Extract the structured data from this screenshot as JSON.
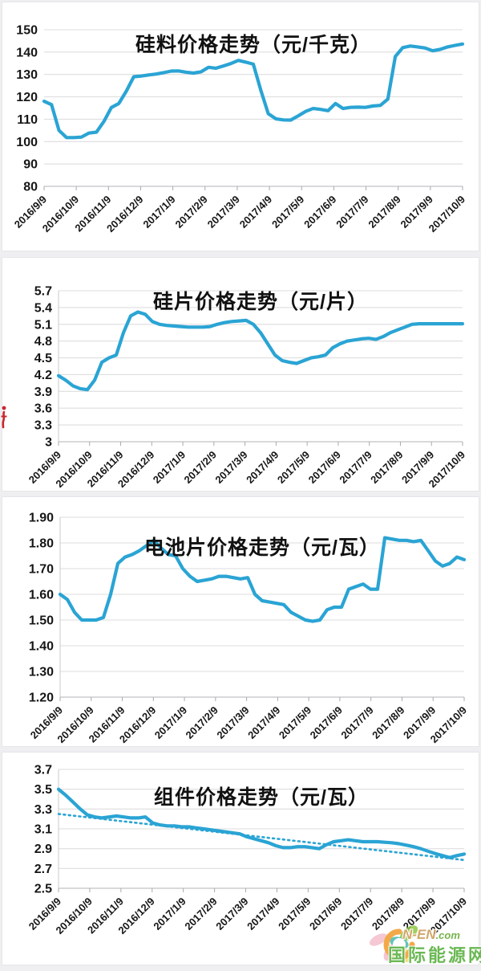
{
  "page": {
    "background": "#efeff1"
  },
  "chart_data": [
    {
      "type": "line",
      "title": "硅料价格走势（元/千克）",
      "categories": [
        "2016/9/9",
        "2016/10/9",
        "2016/11/9",
        "2016/12/9",
        "2017/1/9",
        "2017/2/9",
        "2017/3/9",
        "2017/4/9",
        "2017/5/9",
        "2017/6/9",
        "2017/7/9",
        "2017/8/9",
        "2017/9/9",
        "2017/10/9"
      ],
      "values": [
        118,
        116.5,
        105,
        101.8,
        101.8,
        102,
        103.8,
        104.2,
        109,
        115.2,
        117,
        122.5,
        129,
        129.3,
        129.8,
        130.2,
        130.8,
        131.5,
        131.6,
        131,
        130.6,
        131.2,
        133.2,
        132.8,
        133.8,
        134.9,
        136.3,
        135.5,
        134.6,
        123,
        112.5,
        110.2,
        109.7,
        109.6,
        111.5,
        113.5,
        114.8,
        114.4,
        113.8,
        117,
        114.8,
        115.3,
        115.4,
        115.3,
        115.9,
        116.2,
        119,
        138,
        142,
        142.7,
        142.3,
        141.8,
        140.6,
        141.2,
        142.3,
        143,
        143.6
      ],
      "ylim": [
        80,
        150
      ],
      "yticks": [
        "150",
        "140",
        "130",
        "120",
        "110",
        "100",
        "90",
        "80"
      ],
      "xlabel": "",
      "ylabel": "",
      "grid": true,
      "legend": "none",
      "line_color": "#2aa4d4"
    },
    {
      "type": "line",
      "title": "硅片价格走势（元/片）",
      "categories": [
        "2016/9/9",
        "2016/10/9",
        "2016/11/9",
        "2016/12/9",
        "2017/1/9",
        "2017/2/9",
        "2017/3/9",
        "2017/4/9",
        "2017/5/9",
        "2017/6/9",
        "2017/7/9",
        "2017/8/9",
        "2017/9/9",
        "2017/10/9"
      ],
      "values": [
        4.18,
        4.1,
        4.0,
        3.95,
        3.93,
        4.1,
        4.42,
        4.5,
        4.55,
        4.95,
        5.25,
        5.32,
        5.28,
        5.15,
        5.1,
        5.08,
        5.07,
        5.06,
        5.05,
        5.05,
        5.05,
        5.06,
        5.1,
        5.13,
        5.15,
        5.16,
        5.17,
        5.1,
        4.95,
        4.75,
        4.55,
        4.45,
        4.42,
        4.4,
        4.45,
        4.5,
        4.52,
        4.55,
        4.68,
        4.75,
        4.8,
        4.82,
        4.84,
        4.85,
        4.83,
        4.88,
        4.95,
        5.0,
        5.05,
        5.1,
        5.11,
        5.11,
        5.11,
        5.11,
        5.11,
        5.11,
        5.11
      ],
      "ylim": [
        3,
        5.7
      ],
      "yticks": [
        "5.7",
        "5.4",
        "5.1",
        "4.8",
        "4.5",
        "4.2",
        "3.9",
        "3.6",
        "3.3",
        "3"
      ],
      "xlabel": "",
      "ylabel": "",
      "grid": true,
      "legend": "none",
      "line_color": "#2aa4d4"
    },
    {
      "type": "line",
      "title": "电池片价格走势（元/瓦）",
      "categories": [
        "2016/9/9",
        "2016/10/9",
        "2016/11/9",
        "2016/12/9",
        "2017/1/9",
        "2017/2/9",
        "2017/3/9",
        "2017/4/9",
        "2017/5/9",
        "2017/6/9",
        "2017/7/9",
        "2017/8/9",
        "2017/9/9",
        "2017/10/9"
      ],
      "values": [
        1.6,
        1.58,
        1.53,
        1.5,
        1.5,
        1.5,
        1.51,
        1.6,
        1.72,
        1.745,
        1.755,
        1.77,
        1.79,
        1.81,
        1.78,
        1.755,
        1.75,
        1.7,
        1.67,
        1.65,
        1.655,
        1.66,
        1.67,
        1.67,
        1.665,
        1.66,
        1.665,
        1.6,
        1.575,
        1.57,
        1.565,
        1.56,
        1.53,
        1.515,
        1.5,
        1.495,
        1.5,
        1.54,
        1.55,
        1.55,
        1.62,
        1.63,
        1.64,
        1.62,
        1.62,
        1.82,
        1.815,
        1.81,
        1.81,
        1.805,
        1.81,
        1.77,
        1.73,
        1.71,
        1.72,
        1.745,
        1.735
      ],
      "ylim": [
        1.2,
        1.9
      ],
      "yticks": [
        "1.90",
        "1.80",
        "1.70",
        "1.60",
        "1.50",
        "1.40",
        "1.30",
        "1.20"
      ],
      "xlabel": "",
      "ylabel": "",
      "grid": true,
      "legend": "none",
      "line_color": "#2aa4d4"
    },
    {
      "type": "line",
      "title": "组件价格走势（元/瓦）",
      "categories": [
        "2016/9/9",
        "2016/10/9",
        "2016/11/9",
        "2016/12/9",
        "2017/1/9",
        "2017/2/9",
        "2017/3/9",
        "2017/4/9",
        "2017/5/9",
        "2017/6/9",
        "2017/7/9",
        "2017/8/9",
        "2017/9/9",
        "2017/10/9"
      ],
      "values": [
        3.5,
        3.44,
        3.37,
        3.3,
        3.24,
        3.22,
        3.21,
        3.22,
        3.23,
        3.22,
        3.21,
        3.21,
        3.22,
        3.16,
        3.14,
        3.13,
        3.13,
        3.12,
        3.12,
        3.11,
        3.1,
        3.09,
        3.08,
        3.07,
        3.06,
        3.05,
        3.02,
        3.0,
        2.98,
        2.96,
        2.93,
        2.91,
        2.91,
        2.92,
        2.92,
        2.91,
        2.9,
        2.94,
        2.97,
        2.98,
        2.99,
        2.98,
        2.97,
        2.97,
        2.97,
        2.965,
        2.96,
        2.95,
        2.935,
        2.92,
        2.9,
        2.875,
        2.85,
        2.83,
        2.81,
        2.83,
        2.845
      ],
      "ylim": [
        2.5,
        3.7
      ],
      "yticks": [
        "3.7",
        "3.5",
        "3.3",
        "3.1",
        "2.9",
        "2.7",
        "2.5"
      ],
      "xlabel": "",
      "ylabel": "",
      "grid": true,
      "legend": "none",
      "line_color": "#2aa4d4",
      "trend": {
        "style": "dotted",
        "start": 3.25,
        "end": 2.785,
        "color": "#2aa4d4"
      }
    }
  ],
  "watermark": {
    "site": "N-EN",
    "domain_suffix": ".com",
    "name": "国际能源网",
    "name_color": "#5fb246"
  },
  "decor": {
    "red_mark_color": "#c9252d"
  }
}
